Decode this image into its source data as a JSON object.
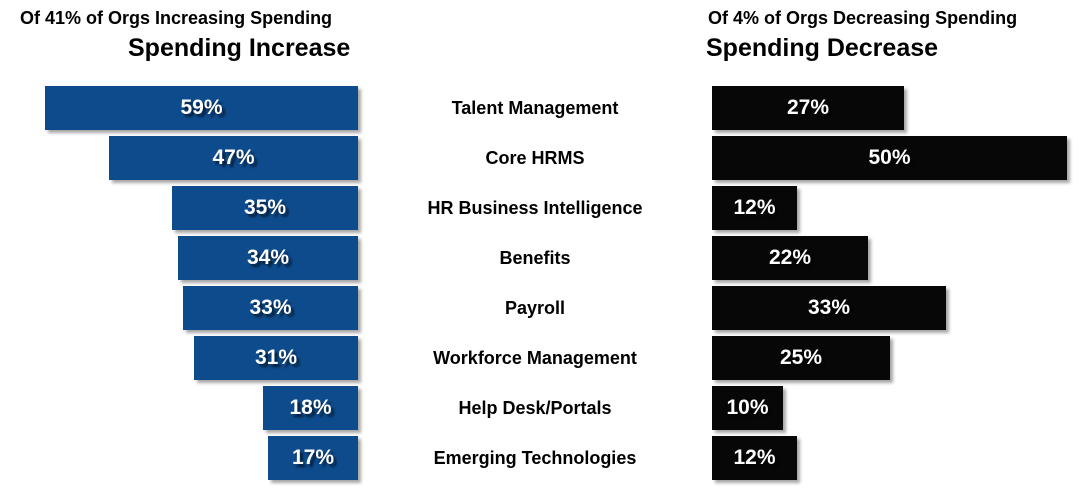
{
  "header": {
    "left_subtitle": "Of 41% of Orgs Increasing Spending",
    "left_title": "Spending Increase",
    "right_subtitle": "Of 4% of Orgs Decreasing Spending",
    "right_title": "Spending Decrease"
  },
  "colors": {
    "increase_bar": "#0D4B8C",
    "decrease_bar": "#070707",
    "bar_label_text": "#FFFFFF",
    "heading_text": "#000000"
  },
  "chart_data": {
    "type": "bar",
    "layout": "tornado-comparison",
    "value_suffix": "%",
    "categories": [
      "Talent Management",
      "Core HRMS",
      "HR Business Intelligence",
      "Benefits",
      "Payroll",
      "Workforce Management",
      "Help Desk/Portals",
      "Emerging Technologies"
    ],
    "series": [
      {
        "name": "Spending Increase",
        "direction": "left",
        "color": "#0D4B8C",
        "values": [
          59,
          47,
          35,
          34,
          33,
          31,
          18,
          17
        ]
      },
      {
        "name": "Spending Decrease",
        "direction": "right",
        "color": "#070707",
        "values": [
          27,
          50,
          12,
          22,
          33,
          25,
          10,
          12
        ]
      }
    ],
    "data_labels": "inside-center",
    "axis_visible": false,
    "grid": false,
    "legend": "none",
    "xlim_increase": [
      0,
      59
    ],
    "xlim_decrease": [
      0,
      50
    ]
  }
}
